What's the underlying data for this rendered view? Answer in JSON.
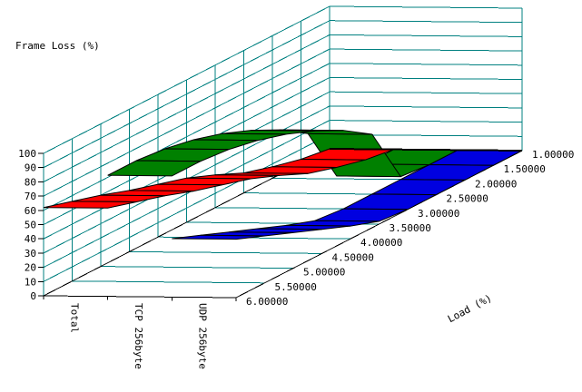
{
  "titles": {
    "value_axis": "Frame Loss (%)",
    "depth_axis": "Load (%)"
  },
  "value_axis": {
    "min": 0,
    "max": 100,
    "step": 10,
    "labels": [
      "0",
      "10",
      "20",
      "30",
      "40",
      "50",
      "60",
      "70",
      "80",
      "90",
      "100"
    ]
  },
  "load_axis": {
    "labels": [
      "1.00000",
      "1.50000",
      "2.00000",
      "2.50000",
      "3.00000",
      "3.50000",
      "4.00000",
      "4.50000",
      "5.00000",
      "5.50000",
      "6.00000"
    ]
  },
  "series_axis": {
    "labels": [
      "Total",
      "TCP 256byte",
      "UDP 256byte"
    ]
  },
  "colors": {
    "background": "#ffffff",
    "grid": "#008080",
    "edge": "#000000",
    "text": "#000000",
    "total": "#ff0000",
    "tcp": "#008000",
    "udp": "#0000e0"
  },
  "chart_data": {
    "type": "area",
    "variant": "3d-ribbon",
    "title": "",
    "xlabel": "Load (%)",
    "ylabel": "Frame Loss (%)",
    "ylim": [
      0,
      100
    ],
    "grid": true,
    "legend": "none",
    "x": [
      1.0,
      1.5,
      2.0,
      2.5,
      3.0,
      3.5,
      4.0,
      4.5,
      5.0,
      5.5,
      6.0
    ],
    "x_tick_labels": [
      "1.00000",
      "1.50000",
      "2.00000",
      "2.50000",
      "3.00000",
      "3.50000",
      "4.00000",
      "4.50000",
      "5.00000",
      "5.50000",
      "6.00000"
    ],
    "depth_axis_note": "load values run along the depth axis, 6.0 at front, 1.0 at back",
    "series": [
      {
        "name": "Total",
        "color": "#ff0000",
        "values": [
          0,
          3,
          8,
          14,
          23,
          31,
          37,
          43,
          50,
          56,
          62
        ]
      },
      {
        "name": "TCP 256byte",
        "color": "#008000",
        "values": [
          0,
          0,
          2,
          42,
          55,
          65,
          73,
          79,
          83,
          85,
          85
        ]
      },
      {
        "name": "UDP 256byte",
        "color": "#0000e0",
        "values": [
          0,
          0,
          0,
          0,
          0,
          2,
          9,
          17,
          25,
          33,
          41
        ]
      }
    ]
  }
}
